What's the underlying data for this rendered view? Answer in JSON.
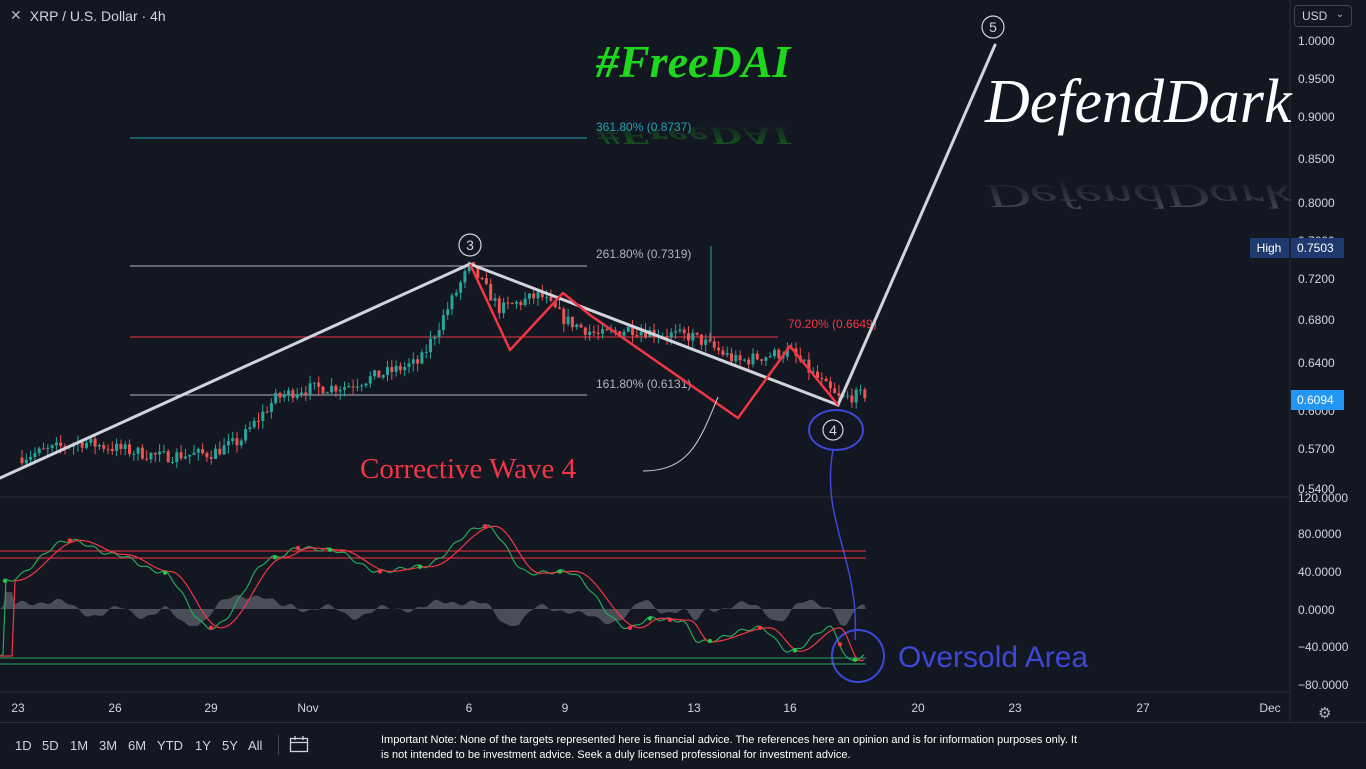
{
  "header": {
    "close_glyph": "✕",
    "symbol_title": "XRP / U.S. Dollar · 4h",
    "currency": "USD"
  },
  "watermark": {
    "hashtag": "#FreeDAI",
    "author": "DefendDark"
  },
  "price_axis": {
    "labels": [
      "1.0000",
      "0.9500",
      "0.9000",
      "0.8500",
      "0.8000",
      "0.7600",
      "0.7200",
      "0.6800",
      "0.6400",
      "0.6000",
      "0.5700",
      "0.5400"
    ],
    "high_tag": {
      "label": "High",
      "value": "0.7503"
    },
    "last_price": "0.6094"
  },
  "oscillator_axis": {
    "labels": [
      "120.0000",
      "80.0000",
      "40.0000",
      "0.0000",
      "−40.0000",
      "−80.0000"
    ]
  },
  "time_axis": {
    "labels": [
      "23",
      "26",
      "29",
      "Nov",
      "6",
      "9",
      "13",
      "16",
      "20",
      "23",
      "27",
      "Dec"
    ]
  },
  "annotations": {
    "fib_361": "361.80% (0.8737)",
    "fib_261": "261.80% (0.7319)",
    "fib_161": "161.80% (0.6131)",
    "fib_70": "70.20% (0.6649)",
    "wave3": "3",
    "wave4": "4",
    "wave5": "5",
    "corrective": "Corrective Wave 4",
    "oversold": "Oversold Area"
  },
  "bottom": {
    "ranges": [
      "1D",
      "5D",
      "1M",
      "3M",
      "6M",
      "YTD",
      "1Y",
      "5Y",
      "All"
    ],
    "note": "Important Note: None of the targets represented here is financial advice. The references here an opinion and is for information purposes only. It is not intended to be investment advice. Seek a duly licensed professional for investment advice."
  },
  "colors": {
    "background": "#131722",
    "up": "#26a69a",
    "down": "#ef5350",
    "wave_line": "#d1d4dc",
    "correction": "#f23645",
    "oversold_blue": "#3d48d6",
    "hashtag_green": "#1ed81e",
    "fib_cyan": "#22a2b8",
    "last_price_bg": "#2196f3",
    "high_bg": "#1e3a6e"
  },
  "chart_data": {
    "type": "candlestick",
    "symbol": "XRP / U.S. Dollar",
    "interval": "4h",
    "ylim": [
      0.53,
      1.02
    ],
    "price_ticks": [
      1.0,
      0.95,
      0.9,
      0.85,
      0.8,
      0.76,
      0.72,
      0.68,
      0.64,
      0.6,
      0.57,
      0.54
    ],
    "close_path": [
      [
        "Oct 22",
        0.549
      ],
      [
        "Oct 24",
        0.564
      ],
      [
        "Oct 26",
        0.558
      ],
      [
        "Oct 28",
        0.55
      ],
      [
        "Oct 29",
        0.553
      ],
      [
        "Oct 30",
        0.565
      ],
      [
        "Oct 31",
        0.605
      ],
      [
        "Nov 2",
        0.614
      ],
      [
        "Nov 4",
        0.617
      ],
      [
        "Nov 5",
        0.64
      ],
      [
        "Nov 6",
        0.732
      ],
      [
        "Nov 7",
        0.69
      ],
      [
        "Nov 8",
        0.704
      ],
      [
        "Nov 9",
        0.68
      ],
      [
        "Nov 10",
        0.665
      ],
      [
        "Nov 11",
        0.672
      ],
      [
        "Nov 12",
        0.667
      ],
      [
        "Nov 13",
        0.664
      ],
      [
        "Nov 14",
        0.64
      ],
      [
        "Nov 15",
        0.645
      ],
      [
        "Nov 16",
        0.65
      ],
      [
        "Nov 17",
        0.605
      ],
      [
        "Nov 18",
        0.6094
      ]
    ],
    "high": 0.7503,
    "last": 0.6094,
    "fib_levels": [
      {
        "label": "361.80%",
        "value": 0.8737
      },
      {
        "label": "261.80%",
        "value": 0.7319
      },
      {
        "label": "70.20%",
        "value": 0.6649
      },
      {
        "label": "161.80%",
        "value": 0.6131
      }
    ],
    "wave_points": [
      {
        "label": "3",
        "date": "Nov 6",
        "value": 0.732
      },
      {
        "label": "4",
        "date": "Nov 18",
        "value": 0.605
      },
      {
        "label": "5",
        "date": "Nov 21",
        "value": 1.0
      }
    ],
    "oscillator": {
      "ylim": [
        -80,
        120
      ],
      "ticks": [
        120,
        80,
        40,
        0,
        -40,
        -80
      ],
      "upper_band": [
        60,
        53
      ],
      "lower_band": [
        -52,
        -56
      ],
      "k_path": [
        [
          "Oct 22",
          30
        ],
        [
          "Oct 24",
          73
        ],
        [
          "Oct 26",
          58
        ],
        [
          "Oct 28",
          40
        ],
        [
          "Oct 29",
          -20
        ],
        [
          "Oct 31",
          55
        ],
        [
          "Nov 1",
          65
        ],
        [
          "Nov 2",
          63
        ],
        [
          "Nov 4",
          40
        ],
        [
          "Nov 5",
          45
        ],
        [
          "Nov 6",
          88
        ],
        [
          "Nov 8",
          38
        ],
        [
          "Nov 9",
          40
        ],
        [
          "Nov 10",
          -20
        ],
        [
          "Nov 11",
          -10
        ],
        [
          "Nov 12",
          -12
        ],
        [
          "Nov 13",
          -35
        ],
        [
          "Nov 14",
          -20
        ],
        [
          "Nov 15",
          -45
        ],
        [
          "Nov 16",
          -20
        ],
        [
          "Nov 17",
          -55
        ],
        [
          "Nov 18",
          -50
        ]
      ]
    }
  }
}
